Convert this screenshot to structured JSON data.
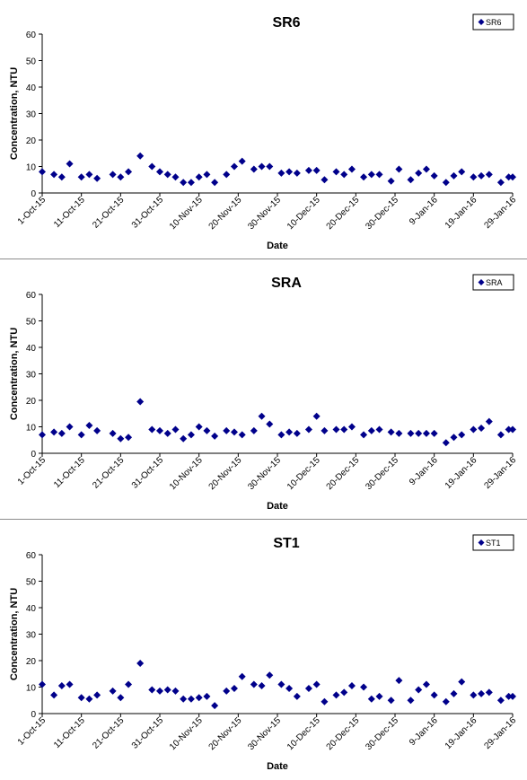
{
  "chart_data": [
    {
      "type": "scatter",
      "title": "SR6",
      "xlabel": "Date",
      "ylabel": "Concentration, NTU",
      "ylim": [
        0,
        60
      ],
      "yticks": [
        "0",
        "10",
        "20",
        "30",
        "40",
        "50",
        "60"
      ],
      "xlim": [
        "2015-10-01",
        "2016-01-29"
      ],
      "xticks": [
        "1-Oct-15",
        "11-Oct-15",
        "21-Oct-15",
        "31-Oct-15",
        "10-Nov-15",
        "20-Nov-15",
        "30-Nov-15",
        "10-Dec-15",
        "20-Dec-15",
        "30-Dec-15",
        "9-Jan-16",
        "19-Jan-16",
        "29-Jan-16"
      ],
      "grid": false,
      "legend_position": "top-right",
      "marker_color": "#00008b",
      "series": [
        {
          "name": "SR6",
          "x": [
            "2015-10-01",
            "2015-10-04",
            "2015-10-06",
            "2015-10-08",
            "2015-10-11",
            "2015-10-13",
            "2015-10-15",
            "2015-10-19",
            "2015-10-21",
            "2015-10-23",
            "2015-10-26",
            "2015-10-29",
            "2015-10-31",
            "2015-11-02",
            "2015-11-04",
            "2015-11-06",
            "2015-11-08",
            "2015-11-10",
            "2015-11-12",
            "2015-11-14",
            "2015-11-17",
            "2015-11-19",
            "2015-11-21",
            "2015-11-24",
            "2015-11-26",
            "2015-11-28",
            "2015-12-01",
            "2015-12-03",
            "2015-12-05",
            "2015-12-08",
            "2015-12-10",
            "2015-12-12",
            "2015-12-15",
            "2015-12-17",
            "2015-12-19",
            "2015-12-22",
            "2015-12-24",
            "2015-12-26",
            "2015-12-29",
            "2015-12-31",
            "2016-01-03",
            "2016-01-05",
            "2016-01-07",
            "2016-01-09",
            "2016-01-12",
            "2016-01-14",
            "2016-01-16",
            "2016-01-19",
            "2016-01-21",
            "2016-01-23",
            "2016-01-26",
            "2016-01-28",
            "2016-01-29"
          ],
          "y": [
            8,
            7,
            6,
            11,
            6,
            7,
            5.5,
            7,
            6,
            8,
            14,
            10,
            8,
            7,
            6,
            4,
            4,
            6,
            7,
            4,
            7,
            10,
            12,
            9,
            10,
            10,
            7.5,
            8,
            7.5,
            8.5,
            8.5,
            5,
            8,
            7,
            9,
            6,
            7,
            7,
            4.5,
            9,
            5,
            7.5,
            9,
            6.5,
            4,
            6.5,
            8,
            6,
            6.5,
            7,
            4,
            6,
            6
          ]
        }
      ]
    },
    {
      "type": "scatter",
      "title": "SRA",
      "xlabel": "Date",
      "ylabel": "Concentration, NTU",
      "ylim": [
        0,
        60
      ],
      "yticks": [
        "0",
        "10",
        "20",
        "30",
        "40",
        "50",
        "60"
      ],
      "xlim": [
        "2015-10-01",
        "2016-01-29"
      ],
      "xticks": [
        "1-Oct-15",
        "11-Oct-15",
        "21-Oct-15",
        "31-Oct-15",
        "10-Nov-15",
        "20-Nov-15",
        "30-Nov-15",
        "10-Dec-15",
        "20-Dec-15",
        "30-Dec-15",
        "9-Jan-16",
        "19-Jan-16",
        "29-Jan-16"
      ],
      "grid": false,
      "legend_position": "top-right",
      "marker_color": "#00008b",
      "series": [
        {
          "name": "SRA",
          "x": [
            "2015-10-01",
            "2015-10-04",
            "2015-10-06",
            "2015-10-08",
            "2015-10-11",
            "2015-10-13",
            "2015-10-15",
            "2015-10-19",
            "2015-10-21",
            "2015-10-23",
            "2015-10-26",
            "2015-10-29",
            "2015-10-31",
            "2015-11-02",
            "2015-11-04",
            "2015-11-06",
            "2015-11-08",
            "2015-11-10",
            "2015-11-12",
            "2015-11-14",
            "2015-11-17",
            "2015-11-19",
            "2015-11-21",
            "2015-11-24",
            "2015-11-26",
            "2015-11-28",
            "2015-12-01",
            "2015-12-03",
            "2015-12-05",
            "2015-12-08",
            "2015-12-10",
            "2015-12-12",
            "2015-12-15",
            "2015-12-17",
            "2015-12-19",
            "2015-12-22",
            "2015-12-24",
            "2015-12-26",
            "2015-12-29",
            "2015-12-31",
            "2016-01-03",
            "2016-01-05",
            "2016-01-07",
            "2016-01-09",
            "2016-01-12",
            "2016-01-14",
            "2016-01-16",
            "2016-01-19",
            "2016-01-21",
            "2016-01-23",
            "2016-01-26",
            "2016-01-28",
            "2016-01-29"
          ],
          "y": [
            7,
            8,
            7.5,
            10,
            7,
            10.5,
            8.5,
            7.5,
            5.5,
            6,
            19.5,
            9,
            8.5,
            7.5,
            9,
            5.5,
            7,
            10,
            8.5,
            6.5,
            8.5,
            8,
            7,
            8.5,
            14,
            11,
            7,
            8,
            7.5,
            9,
            14,
            8.5,
            9,
            9,
            10,
            7,
            8.5,
            9,
            8,
            7.5,
            7.5,
            7.5,
            7.5,
            7.5,
            4,
            6,
            7,
            9,
            9.5,
            12,
            7,
            9,
            9
          ]
        }
      ]
    },
    {
      "type": "scatter",
      "title": "ST1",
      "xlabel": "Date",
      "ylabel": "Concentration, NTU",
      "ylim": [
        0,
        60
      ],
      "yticks": [
        "0",
        "10",
        "20",
        "30",
        "40",
        "50",
        "60"
      ],
      "xlim": [
        "2015-10-01",
        "2016-01-29"
      ],
      "xticks": [
        "1-Oct-15",
        "11-Oct-15",
        "21-Oct-15",
        "31-Oct-15",
        "10-Nov-15",
        "20-Nov-15",
        "30-Nov-15",
        "10-Dec-15",
        "20-Dec-15",
        "30-Dec-15",
        "9-Jan-16",
        "19-Jan-16",
        "29-Jan-16"
      ],
      "grid": false,
      "legend_position": "top-right",
      "marker_color": "#00008b",
      "series": [
        {
          "name": "ST1",
          "x": [
            "2015-10-01",
            "2015-10-04",
            "2015-10-06",
            "2015-10-08",
            "2015-10-11",
            "2015-10-13",
            "2015-10-15",
            "2015-10-19",
            "2015-10-21",
            "2015-10-23",
            "2015-10-26",
            "2015-10-29",
            "2015-10-31",
            "2015-11-02",
            "2015-11-04",
            "2015-11-06",
            "2015-11-08",
            "2015-11-10",
            "2015-11-12",
            "2015-11-14",
            "2015-11-17",
            "2015-11-19",
            "2015-11-21",
            "2015-11-24",
            "2015-11-26",
            "2015-11-28",
            "2015-12-01",
            "2015-12-03",
            "2015-12-05",
            "2015-12-08",
            "2015-12-10",
            "2015-12-12",
            "2015-12-15",
            "2015-12-17",
            "2015-12-19",
            "2015-12-22",
            "2015-12-24",
            "2015-12-26",
            "2015-12-29",
            "2015-12-31",
            "2016-01-03",
            "2016-01-05",
            "2016-01-07",
            "2016-01-09",
            "2016-01-12",
            "2016-01-14",
            "2016-01-16",
            "2016-01-19",
            "2016-01-21",
            "2016-01-23",
            "2016-01-26",
            "2016-01-28",
            "2016-01-29"
          ],
          "y": [
            11,
            7,
            10.5,
            11,
            6,
            5.5,
            7,
            8.5,
            6,
            11,
            19,
            9,
            8.5,
            9,
            8.5,
            5.5,
            5.5,
            6,
            6.5,
            3,
            8.5,
            9.5,
            14,
            11,
            10.5,
            14.5,
            11,
            9.5,
            6.5,
            9.5,
            11,
            4.5,
            7,
            8,
            10.5,
            10,
            5.5,
            6.5,
            5,
            12.5,
            5,
            9,
            11,
            7,
            4.5,
            7.5,
            12,
            7,
            7.5,
            8,
            5,
            6.5,
            6.5
          ]
        }
      ]
    }
  ]
}
